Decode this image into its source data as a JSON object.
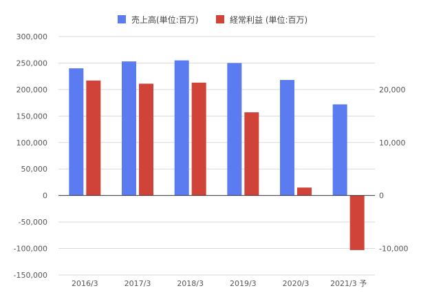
{
  "chart_data": {
    "type": "bar",
    "categories": [
      "2016/3",
      "2017/3",
      "2018/3",
      "2019/3",
      "2020/3",
      "2021/3 予"
    ],
    "series": [
      {
        "name": "売上高(単位:百万)",
        "axis": "left",
        "color": "#5B7BF0",
        "values": [
          240000,
          253000,
          255000,
          250000,
          218000,
          172000
        ]
      },
      {
        "name": "経常利益 (単位:百万)",
        "axis": "right",
        "color": "#D04338",
        "values": [
          21700,
          21100,
          21300,
          15700,
          1500,
          -10300
        ]
      }
    ],
    "y_left": {
      "range": [
        -150000,
        300000
      ],
      "ticks": [
        "300,000",
        "250,000",
        "200,000",
        "150,000",
        "100,000",
        "50,000",
        "0",
        "-50,000",
        "-100,000",
        "-150,000"
      ]
    },
    "y_right": {
      "range": [
        -15000,
        30000
      ],
      "ticks": [
        "20,000",
        "10,000",
        "0",
        "-10,000"
      ]
    },
    "legend_position": "top-center",
    "grid": true
  }
}
